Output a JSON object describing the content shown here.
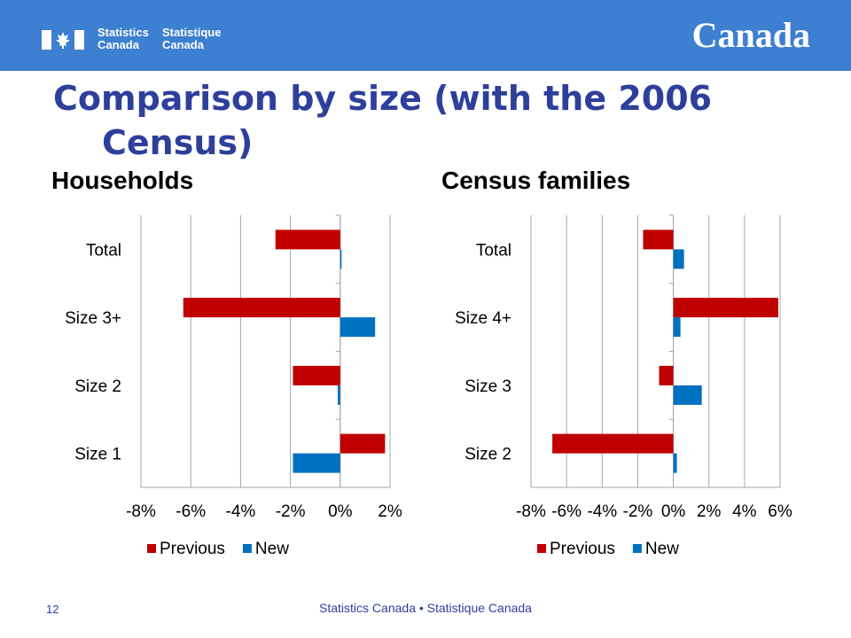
{
  "header": {
    "agency_en_1": "Statistics",
    "agency_en_2": "Canada",
    "agency_fr_1": "Statistique",
    "agency_fr_2": "Canada",
    "wordmark": "Canada",
    "banner_color": "#3d7fd0"
  },
  "slide": {
    "title_line1": "Comparison by size (with the 2006",
    "title_line2": "Census)",
    "title_color": "#2e3f9b"
  },
  "footer": {
    "page_number": "12",
    "text": "Statistics Canada • Statistique Canada"
  },
  "chart_data": [
    {
      "type": "bar",
      "orientation": "horizontal",
      "title": "Households",
      "categories": [
        "Total",
        "Size 3+",
        "Size 2",
        "Size 1"
      ],
      "series": [
        {
          "name": "Previous",
          "color": "#c00000",
          "values": [
            -2.6,
            -6.3,
            -1.9,
            1.8
          ]
        },
        {
          "name": "New",
          "color": "#0070c0",
          "values": [
            0.0,
            1.4,
            -0.1,
            -1.9
          ]
        }
      ],
      "xlim": [
        -8,
        2
      ],
      "ticks": [
        "-8%",
        "-6%",
        "-4%",
        "-2%",
        "0%",
        "2%"
      ],
      "tick_values": [
        -8,
        -6,
        -4,
        -2,
        0,
        2
      ],
      "grid": true,
      "legend": "bottom"
    },
    {
      "type": "bar",
      "orientation": "horizontal",
      "title": "Census families",
      "categories": [
        "Total",
        "Size 4+",
        "Size 3",
        "Size 2"
      ],
      "series": [
        {
          "name": "Previous",
          "color": "#c00000",
          "values": [
            -1.7,
            5.9,
            -0.8,
            -6.8
          ]
        },
        {
          "name": "New",
          "color": "#0070c0",
          "values": [
            0.6,
            0.4,
            1.6,
            0.2
          ]
        }
      ],
      "xlim": [
        -8,
        6
      ],
      "ticks": [
        "-8%",
        "-6%",
        "-4%",
        "-2%",
        "0%",
        "2%",
        "4%",
        "6%"
      ],
      "tick_values": [
        -8,
        -6,
        -4,
        -2,
        0,
        2,
        4,
        6
      ],
      "grid": true,
      "legend": "bottom"
    }
  ]
}
